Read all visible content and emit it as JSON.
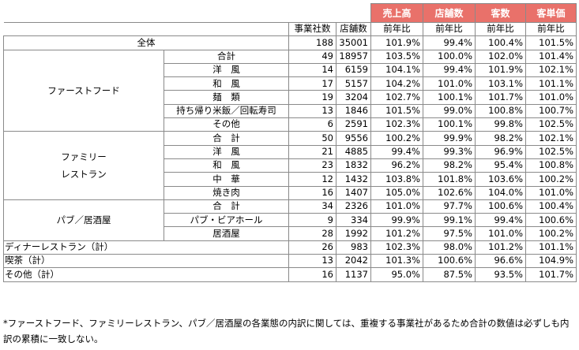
{
  "table": {
    "metrics": [
      "売上高",
      "店舗数",
      "客数",
      "客単価"
    ],
    "subheaders": [
      "事業社数",
      "店舗数",
      "前年比",
      "前年比",
      "前年比",
      "前年比"
    ],
    "total": {
      "label": "全体",
      "values": [
        "188",
        "35001",
        "101.9%",
        "99.4%",
        "100.4%",
        "101.5%"
      ]
    },
    "groups": [
      {
        "name": "ファーストフード",
        "rows": [
          {
            "label": "合計",
            "values": [
              "49",
              "18957",
              "103.5%",
              "100.0%",
              "102.0%",
              "101.4%"
            ]
          },
          {
            "label": "洋　風",
            "values": [
              "14",
              "6159",
              "104.1%",
              "99.4%",
              "101.9%",
              "102.1%"
            ]
          },
          {
            "label": "和　風",
            "values": [
              "17",
              "5157",
              "104.2%",
              "101.0%",
              "103.1%",
              "101.1%"
            ]
          },
          {
            "label": "麺　類",
            "values": [
              "19",
              "3204",
              "102.7%",
              "100.1%",
              "101.7%",
              "101.0%"
            ]
          },
          {
            "label": "持ち帰り米飯／回転寿司",
            "values": [
              "13",
              "1846",
              "101.5%",
              "99.0%",
              "100.8%",
              "100.7%"
            ]
          },
          {
            "label": "その他",
            "values": [
              "6",
              "2591",
              "102.3%",
              "100.1%",
              "99.8%",
              "102.5%"
            ]
          }
        ]
      },
      {
        "name": "ファミリー\nレストラン",
        "rows": [
          {
            "label": "合　計",
            "values": [
              "50",
              "9556",
              "100.2%",
              "99.9%",
              "98.2%",
              "102.1%"
            ]
          },
          {
            "label": "洋　風",
            "values": [
              "21",
              "4885",
              "99.4%",
              "99.3%",
              "96.9%",
              "102.5%"
            ]
          },
          {
            "label": "和　風",
            "values": [
              "23",
              "1832",
              "96.2%",
              "98.2%",
              "95.4%",
              "100.8%"
            ]
          },
          {
            "label": "中　華",
            "values": [
              "12",
              "1432",
              "103.8%",
              "101.8%",
              "103.6%",
              "100.2%"
            ]
          },
          {
            "label": "焼き肉",
            "values": [
              "16",
              "1407",
              "105.0%",
              "102.6%",
              "104.0%",
              "101.0%"
            ]
          }
        ]
      },
      {
        "name": "パブ／居酒屋",
        "rows": [
          {
            "label": "合　計",
            "values": [
              "34",
              "2326",
              "101.0%",
              "97.7%",
              "100.6%",
              "100.4%"
            ]
          },
          {
            "label": "パブ・ビアホール",
            "values": [
              "9",
              "334",
              "99.9%",
              "99.1%",
              "99.4%",
              "100.6%"
            ]
          },
          {
            "label": "居酒屋",
            "values": [
              "28",
              "1992",
              "101.2%",
              "97.5%",
              "101.0%",
              "100.2%"
            ]
          }
        ]
      }
    ],
    "footer_rows": [
      {
        "label": "ディナーレストラン（計）",
        "values": [
          "26",
          "983",
          "102.3%",
          "98.0%",
          "101.2%",
          "101.1%"
        ]
      },
      {
        "label": "喫茶（計）",
        "values": [
          "13",
          "2042",
          "101.3%",
          "100.6%",
          "96.6%",
          "104.9%"
        ]
      },
      {
        "label": "その他（計）",
        "values": [
          "16",
          "1137",
          "95.0%",
          "87.5%",
          "93.5%",
          "101.7%"
        ]
      }
    ]
  },
  "note": "*ファーストフード、ファミリーレストラン、パブ／居酒屋の各業態の内訳に関しては、重複する事業社があるため合計の数値は必ずしも内訳の累積に一致しない。"
}
